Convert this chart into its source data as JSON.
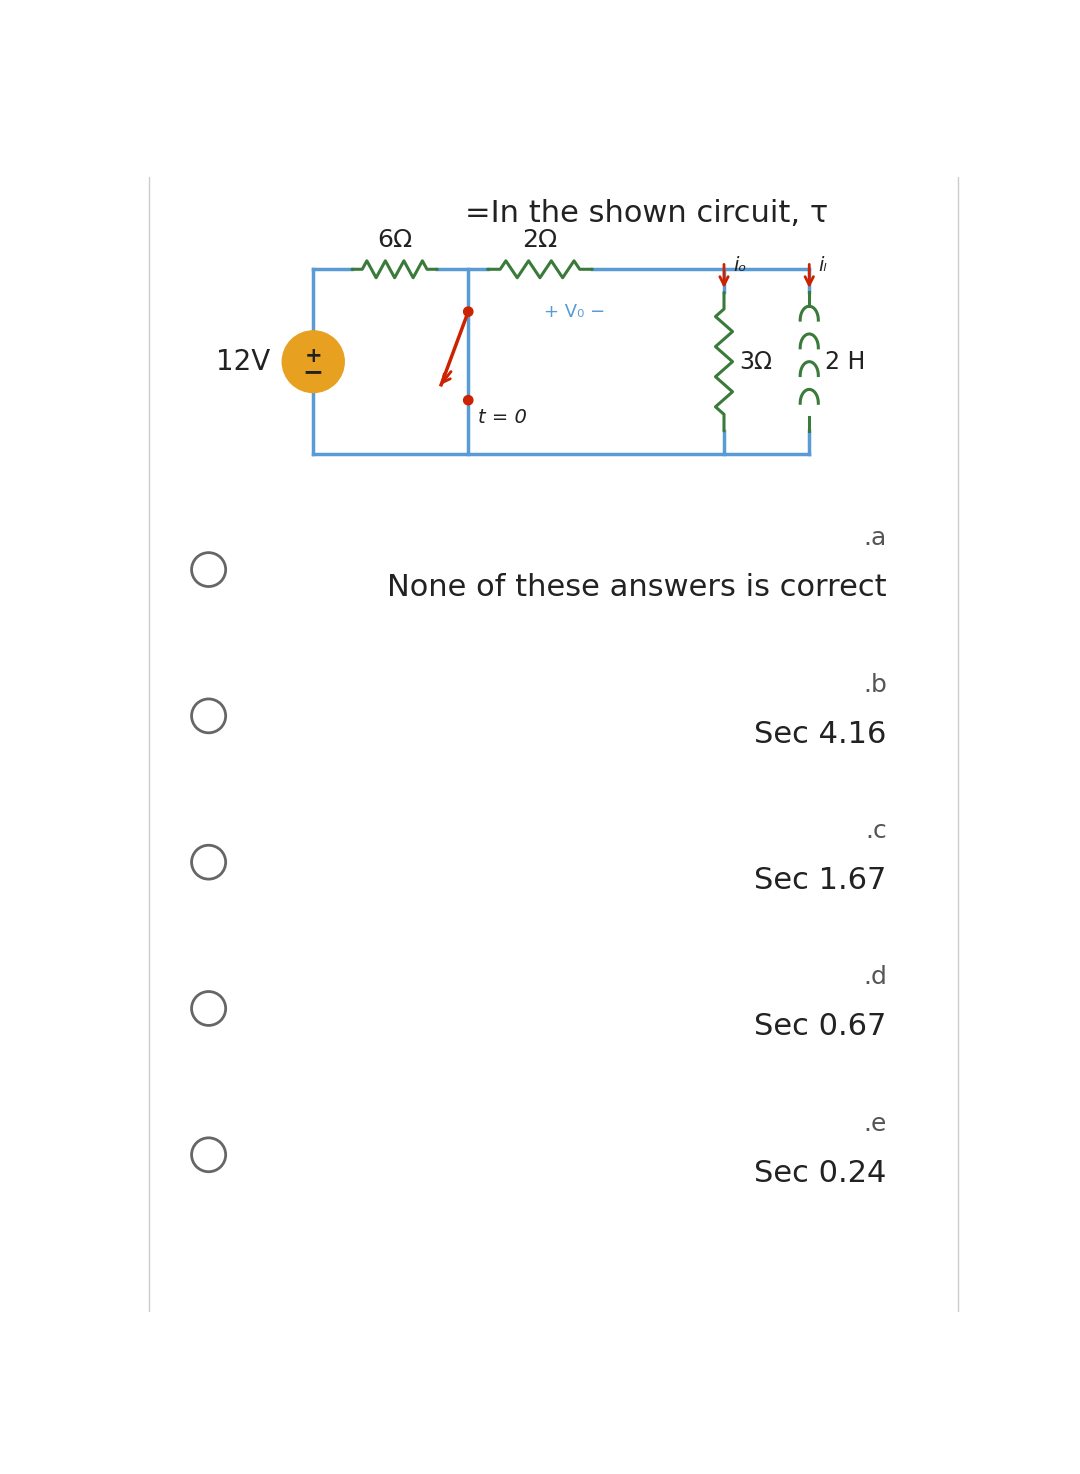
{
  "title": "=In the shown circuit, τ",
  "background_color": "#ffffff",
  "circuit_color": "#5b9bd5",
  "resistor_color": "#3a7a3a",
  "inductor_color": "#3a7a3a",
  "source_color": "#e8a020",
  "switch_color": "#cc2200",
  "arrow_color": "#cc2200",
  "voltage_label": "12V",
  "r1_label": "6Ω",
  "r2_label": "2Ω",
  "r3_label": "3Ω",
  "l_label": "2 H",
  "vo_label": "+ V₀ −",
  "io_label": "iₒ",
  "il_label": "iₗ",
  "switch_label": "t = 0",
  "option_labels": [
    ".a",
    ".b",
    ".c",
    ".d",
    ".e"
  ],
  "option_values": [
    "None of these answers is correct",
    "Sec 4.16",
    "Sec 1.67",
    "Sec 0.67",
    "Sec 0.24"
  ]
}
